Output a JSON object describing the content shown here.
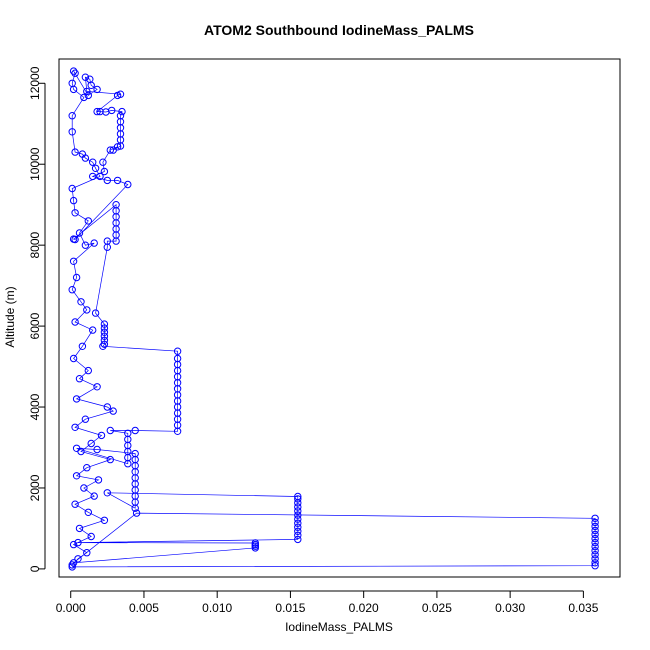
{
  "chart_data": {
    "type": "scatter",
    "title": "ATOM2 Southbound IodineMass_PALMS",
    "xlabel": "IodineMass_PALMS",
    "ylabel": "Altitude (m)",
    "xlim": [
      -0.0008,
      0.0375
    ],
    "ylim": [
      -200,
      12600
    ],
    "x_ticks": [
      0.0,
      0.005,
      0.01,
      0.015,
      0.02,
      0.025,
      0.03,
      0.035
    ],
    "x_tick_labels": [
      "0.000",
      "0.005",
      "0.010",
      "0.015",
      "0.020",
      "0.025",
      "0.030",
      "0.035"
    ],
    "y_ticks": [
      0,
      2000,
      4000,
      6000,
      8000,
      10000,
      12000
    ],
    "y_tick_labels": [
      "0",
      "2000",
      "4000",
      "6000",
      "8000",
      "10000",
      "12000"
    ],
    "grid": false,
    "legend": "none",
    "series": [
      {
        "color": "#0000ff",
        "marker": "open-circle",
        "line": true,
        "points": [
          [
            0.0001,
            50
          ],
          [
            0.0358,
            80
          ],
          [
            0.0358,
            150
          ],
          [
            0.0358,
            250
          ],
          [
            0.0358,
            350
          ],
          [
            0.0358,
            450
          ],
          [
            0.0358,
            550
          ],
          [
            0.0358,
            650
          ],
          [
            0.0358,
            750
          ],
          [
            0.0358,
            850
          ],
          [
            0.0358,
            950
          ],
          [
            0.0358,
            1050
          ],
          [
            0.0358,
            1150
          ],
          [
            0.0358,
            1250
          ],
          [
            0.0045,
            1380
          ],
          [
            0.0002,
            150
          ],
          [
            0.0126,
            520
          ],
          [
            0.0126,
            560
          ],
          [
            0.0126,
            600
          ],
          [
            0.0126,
            640
          ],
          [
            0.0005,
            650
          ],
          [
            0.0155,
            730
          ],
          [
            0.0155,
            830
          ],
          [
            0.0155,
            930
          ],
          [
            0.0155,
            1030
          ],
          [
            0.0155,
            1130
          ],
          [
            0.0155,
            1230
          ],
          [
            0.0155,
            1330
          ],
          [
            0.0155,
            1430
          ],
          [
            0.0155,
            1530
          ],
          [
            0.0155,
            1630
          ],
          [
            0.0155,
            1730
          ],
          [
            0.0155,
            1790
          ],
          [
            0.0025,
            1880
          ],
          [
            0.0044,
            1500
          ],
          [
            0.0044,
            1650
          ],
          [
            0.0044,
            1800
          ],
          [
            0.0044,
            1950
          ],
          [
            0.0044,
            2100
          ],
          [
            0.0044,
            2250
          ],
          [
            0.0044,
            2400
          ],
          [
            0.0044,
            2550
          ],
          [
            0.0044,
            2700
          ],
          [
            0.0044,
            2850
          ],
          [
            0.0018,
            2950
          ],
          [
            0.0004,
            2980
          ],
          [
            0.0039,
            2600
          ],
          [
            0.0039,
            2750
          ],
          [
            0.0039,
            2900
          ],
          [
            0.0039,
            3050
          ],
          [
            0.0039,
            3200
          ],
          [
            0.0039,
            3350
          ],
          [
            0.0027,
            3420
          ],
          [
            0.0044,
            3420
          ],
          [
            0.0073,
            3400
          ],
          [
            0.0073,
            3550
          ],
          [
            0.0073,
            3700
          ],
          [
            0.0073,
            3850
          ],
          [
            0.0073,
            4000
          ],
          [
            0.0073,
            4150
          ],
          [
            0.0073,
            4300
          ],
          [
            0.0073,
            4450
          ],
          [
            0.0073,
            4600
          ],
          [
            0.0073,
            4750
          ],
          [
            0.0073,
            4900
          ],
          [
            0.0073,
            5050
          ],
          [
            0.0073,
            5200
          ],
          [
            0.0073,
            5380
          ],
          [
            0.0022,
            5500
          ],
          [
            0.0023,
            5550
          ],
          [
            0.0023,
            5650
          ],
          [
            0.0023,
            5750
          ],
          [
            0.0023,
            5850
          ],
          [
            0.0023,
            5950
          ],
          [
            0.0023,
            6050
          ],
          [
            0.0017,
            6320
          ],
          [
            0.0025,
            7950
          ],
          [
            0.0025,
            8100
          ],
          [
            0.0031,
            8100
          ],
          [
            0.0031,
            8250
          ],
          [
            0.0031,
            8400
          ],
          [
            0.0031,
            8550
          ],
          [
            0.0031,
            8700
          ],
          [
            0.0031,
            8850
          ],
          [
            0.0031,
            9000
          ],
          [
            0.0002,
            8150
          ],
          [
            0.0003,
            8140
          ],
          [
            0.0039,
            9500
          ],
          [
            0.0032,
            9600
          ],
          [
            0.0025,
            9600
          ],
          [
            0.0015,
            9700
          ],
          [
            0.0023,
            9820
          ],
          [
            0.0022,
            10050
          ],
          [
            0.0027,
            10350
          ],
          [
            0.0032,
            10430
          ],
          [
            0.0029,
            10350
          ],
          [
            0.0034,
            10450
          ],
          [
            0.0034,
            10600
          ],
          [
            0.0034,
            10750
          ],
          [
            0.0034,
            10900
          ],
          [
            0.0034,
            11050
          ],
          [
            0.0034,
            11200
          ],
          [
            0.0035,
            11300
          ],
          [
            0.0028,
            11330
          ],
          [
            0.0024,
            11290
          ],
          [
            0.002,
            11300
          ],
          [
            0.0018,
            11300
          ],
          [
            0.0032,
            11700
          ],
          [
            0.0034,
            11730
          ],
          [
            0.0011,
            11800
          ],
          [
            0.001,
            12150
          ],
          [
            0.0013,
            12100
          ],
          [
            0.0014,
            11950
          ],
          [
            0.0018,
            11850
          ],
          [
            0.0012,
            11700
          ],
          [
            0.0002,
            12300
          ],
          [
            0.0003,
            12250
          ],
          [
            0.0001,
            12000
          ],
          [
            0.0002,
            11850
          ],
          [
            0.0009,
            11650
          ],
          [
            0.0001,
            11200
          ],
          [
            0.0001,
            10800
          ],
          [
            0.0003,
            10300
          ],
          [
            0.0008,
            10250
          ],
          [
            0.001,
            10150
          ],
          [
            0.0015,
            10050
          ],
          [
            0.0017,
            9900
          ],
          [
            0.002,
            9700
          ],
          [
            0.0001,
            9400
          ],
          [
            0.0002,
            9100
          ],
          [
            0.0003,
            8800
          ],
          [
            0.0012,
            8600
          ],
          [
            0.0006,
            8300
          ],
          [
            0.001,
            8000
          ],
          [
            0.0016,
            8050
          ],
          [
            0.0002,
            7600
          ],
          [
            0.0004,
            7200
          ],
          [
            0.0001,
            6900
          ],
          [
            0.0007,
            6600
          ],
          [
            0.0011,
            6400
          ],
          [
            0.0003,
            6100
          ],
          [
            0.0015,
            5900
          ],
          [
            0.0008,
            5500
          ],
          [
            0.0002,
            5200
          ],
          [
            0.0012,
            4900
          ],
          [
            0.0006,
            4700
          ],
          [
            0.0018,
            4500
          ],
          [
            0.0004,
            4200
          ],
          [
            0.0025,
            4000
          ],
          [
            0.0029,
            3900
          ],
          [
            0.001,
            3700
          ],
          [
            0.0003,
            3500
          ],
          [
            0.0021,
            3300
          ],
          [
            0.0014,
            3100
          ],
          [
            0.0007,
            2900
          ],
          [
            0.0027,
            2700
          ],
          [
            0.0011,
            2500
          ],
          [
            0.0004,
            2300
          ],
          [
            0.0019,
            2200
          ],
          [
            0.0009,
            2000
          ],
          [
            0.0016,
            1800
          ],
          [
            0.0003,
            1600
          ],
          [
            0.0012,
            1400
          ],
          [
            0.0023,
            1200
          ],
          [
            0.0006,
            1000
          ],
          [
            0.0014,
            800
          ],
          [
            0.0002,
            600
          ],
          [
            0.0011,
            400
          ],
          [
            0.0005,
            250
          ],
          [
            0.0001,
            100
          ]
        ]
      }
    ]
  }
}
